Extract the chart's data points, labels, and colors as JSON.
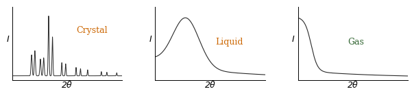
{
  "crystal_label": "Crystal",
  "liquid_label": "Liquid",
  "gas_label": "Gas",
  "crystal_label_color": "#cc6600",
  "liquid_label_color": "#cc6600",
  "gas_label_color": "#336633",
  "axis_label_I": "I",
  "axis_label_2theta": "2θ",
  "bg_color": "#ffffff",
  "line_color": "#2a2a2a",
  "label_fontsize": 9,
  "axis_I_fontsize": 9,
  "axis_theta_fontsize": 9
}
